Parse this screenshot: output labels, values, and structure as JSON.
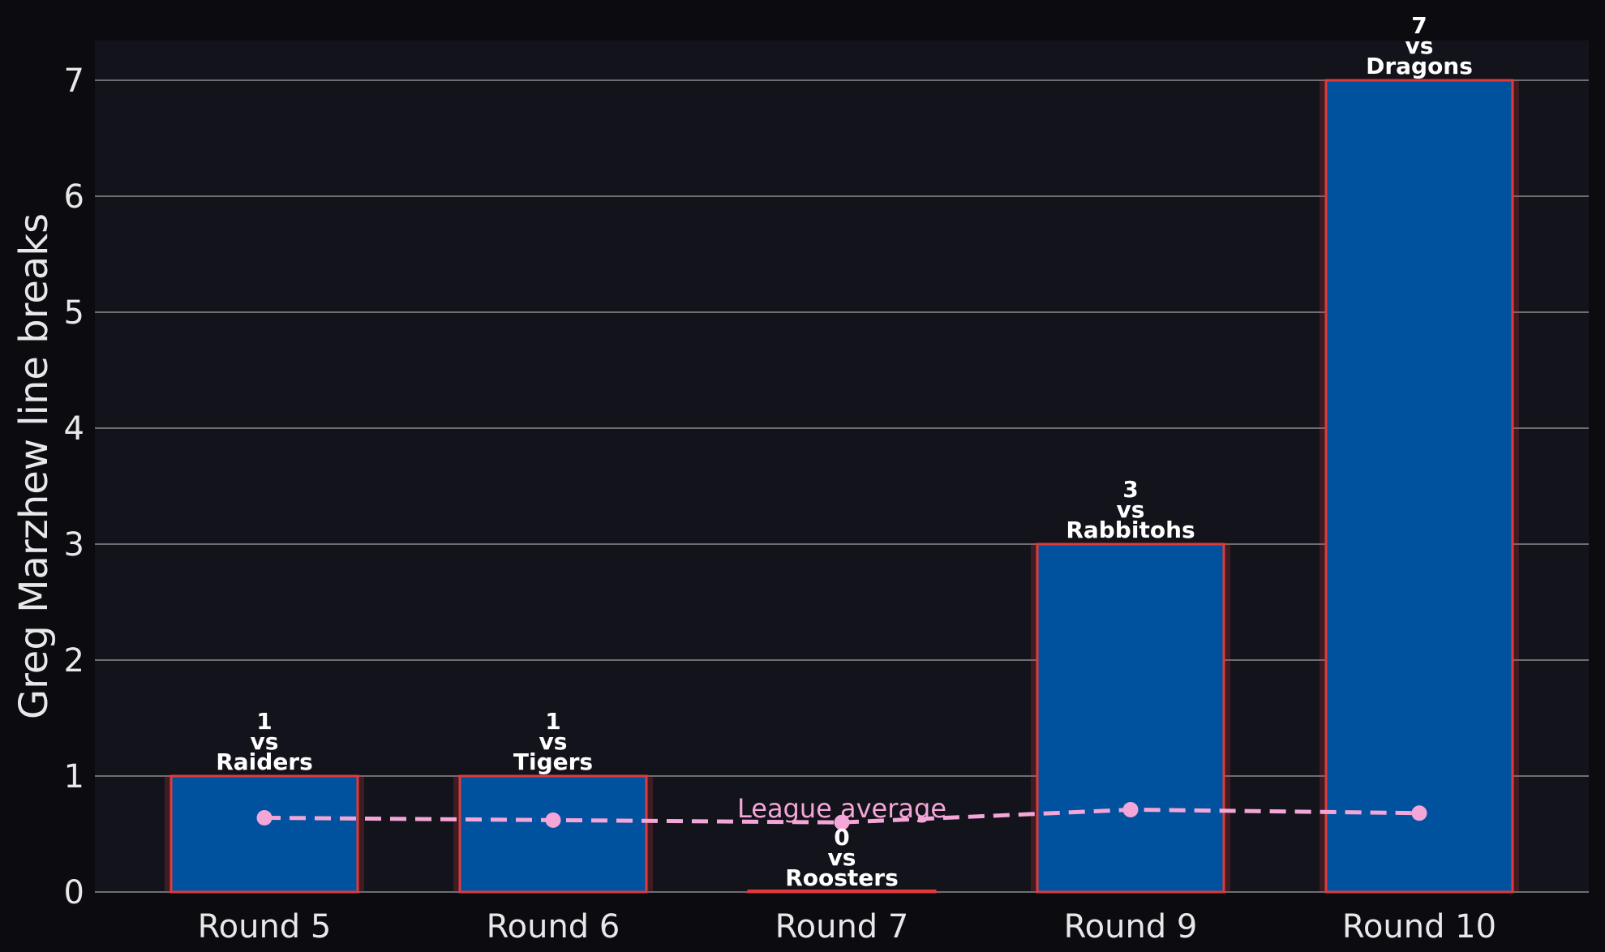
{
  "chart_data": {
    "type": "bar",
    "title": "",
    "xlabel": "",
    "ylabel": "Greg Marzhew line breaks",
    "categories": [
      "Round 5",
      "Round 6",
      "Round 7",
      "Round 9",
      "Round 10"
    ],
    "values": [
      1,
      1,
      0,
      3,
      7
    ],
    "bar_labels": [
      [
        "1",
        "vs",
        "Raiders"
      ],
      [
        "1",
        "vs",
        "Tigers"
      ],
      [
        "0",
        "vs",
        "Roosters"
      ],
      [
        "3",
        "vs",
        "Rabbitohs"
      ],
      [
        "7",
        "vs",
        "Dragons"
      ]
    ],
    "series": [
      {
        "name": "League average",
        "type": "line",
        "values": [
          0.64,
          0.62,
          0.6,
          0.71,
          0.68
        ]
      }
    ],
    "league_average_label": "League average",
    "ylim": [
      0,
      7.35
    ],
    "yticks": [
      "0",
      "1",
      "2",
      "3",
      "4",
      "5",
      "6",
      "7"
    ],
    "grid": "horizontal",
    "colors": {
      "background": "#0c0c10",
      "plot_background": "#13131b",
      "bar_fill": "#00529f",
      "bar_edge": "#e03a3a",
      "average_line": "#f4a6d8",
      "grid": "#6e6e72",
      "text": "#e8e8ea"
    }
  }
}
